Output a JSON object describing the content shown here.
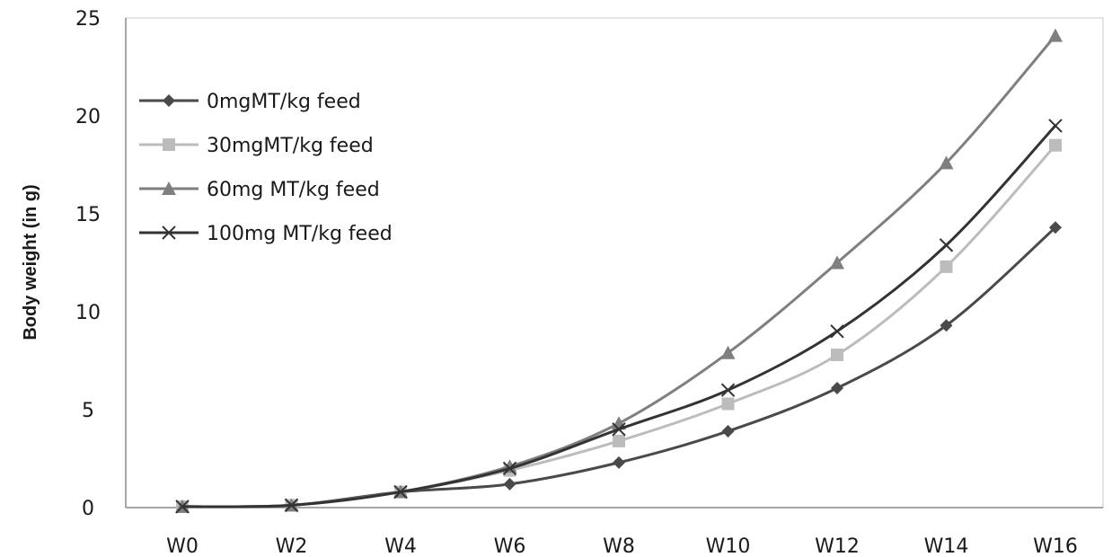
{
  "chart_data": {
    "type": "line",
    "title": "",
    "xlabel": "",
    "ylabel": "Body weight (in g)",
    "categories": [
      "W0",
      "W2",
      "W4",
      "W6",
      "W8",
      "W10",
      "W12",
      "W14",
      "W16"
    ],
    "ylim": [
      0,
      25
    ],
    "yticks": [
      "0",
      "5",
      "10",
      "15",
      "20",
      "25"
    ],
    "grid": false,
    "legend_position": "top-left",
    "series": [
      {
        "name": "0mgMT/kg  feed",
        "marker": "diamond",
        "color": "#4a4a4a",
        "values": [
          0.05,
          0.12,
          0.8,
          1.2,
          2.3,
          3.9,
          6.1,
          9.3,
          14.3
        ]
      },
      {
        "name": "30mgMT/kg feed",
        "marker": "square",
        "color": "#bcbcbc",
        "values": [
          0.05,
          0.12,
          0.8,
          1.9,
          3.4,
          5.3,
          7.8,
          12.3,
          18.5
        ]
      },
      {
        "name": "60mg MT/kg feed",
        "marker": "triangle",
        "color": "#7f7f7f",
        "values": [
          0.05,
          0.12,
          0.8,
          2.1,
          4.3,
          7.9,
          12.5,
          17.6,
          24.1
        ]
      },
      {
        "name": "100mg MT/kg feed",
        "marker": "x",
        "color": "#333333",
        "values": [
          0.05,
          0.12,
          0.8,
          2.0,
          4.0,
          6.0,
          9.0,
          13.4,
          19.5
        ]
      }
    ]
  }
}
